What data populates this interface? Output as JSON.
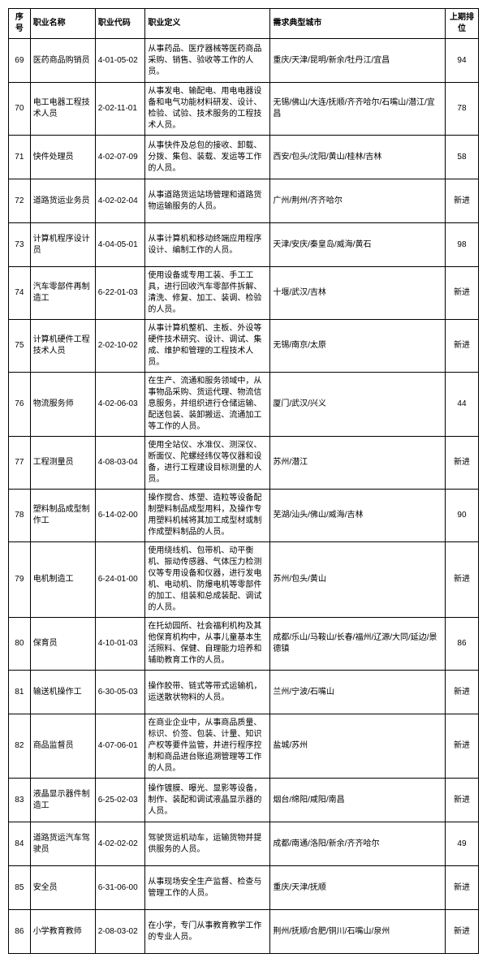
{
  "columns": [
    "序号",
    "职业名称",
    "职业代码",
    "职业定义",
    "需求典型城市",
    "上期排位"
  ],
  "rows": [
    {
      "idx": "69",
      "name": "医药商品购销员",
      "code": "4-01-05-02",
      "def": "从事药品、医疗器械等医药商品采购、销售、验收等工作的人员。",
      "city": "重庆/天津/昆明/新余/牡丹江/宜昌",
      "rank": "94"
    },
    {
      "idx": "70",
      "name": "电工电器工程技术人员",
      "code": "2-02-11-01",
      "def": "从事发电、输配电、用电电器设备和电气功能材料研发、设计、检验、试验、技术服务的工程技术人员。",
      "city": "无锡/佛山/大连/抚顺/齐齐哈尔/石嘴山/潜江/宜昌",
      "rank": "78"
    },
    {
      "idx": "71",
      "name": "快件处理员",
      "code": "4-02-07-09",
      "def": "从事快件及总包的接收、卸载、分拨、集包、装载、发运等工作的人员。",
      "city": "西安/包头/沈阳/黄山/桂林/吉林",
      "rank": "58"
    },
    {
      "idx": "72",
      "name": "道路货运业务员",
      "code": "4-02-02-04",
      "def": "从事道路货运站场管理和道路货物运输服务的人员。",
      "city": "广州/荆州/齐齐哈尔",
      "rank": "新进"
    },
    {
      "idx": "73",
      "name": "计算机程序设计员",
      "code": "4-04-05-01",
      "def": "从事计算机和移动终端应用程序设计、编制工作的人员。",
      "city": "天津/安庆/秦皇岛/威海/黄石",
      "rank": "98"
    },
    {
      "idx": "74",
      "name": "汽车零部件再制造工",
      "code": "6-22-01-03",
      "def": "使用设备或专用工装、手工工具，进行回收汽车零部件拆解、清洗、修复、加工、装调、检验的人员。",
      "city": "十堰/武汉/吉林",
      "rank": "新进"
    },
    {
      "idx": "75",
      "name": "计算机硬件工程技术人员",
      "code": "2-02-10-02",
      "def": "从事计算机整机、主板、外设等硬件技术研究、设计、调试、集成、维护和管理的工程技术人员。",
      "city": "无锡/南京/太原",
      "rank": "新进"
    },
    {
      "idx": "76",
      "name": "物流服务师",
      "code": "4-02-06-03",
      "def": "在生产、流通和服务领域中，从事物品采购、货运代理、物流信息服务，并组织进行仓储运输、配送包装、装卸搬运、流通加工等工作的人员。",
      "city": "厦门/武汉/兴义",
      "rank": "44"
    },
    {
      "idx": "77",
      "name": "工程测量员",
      "code": "4-08-03-04",
      "def": "使用全站仪、水准仪、测深仪、断面仪、陀螺经纬仪等仪器和设备，进行工程建设目标测量的人员。",
      "city": "苏州/潜江",
      "rank": "新进"
    },
    {
      "idx": "78",
      "name": "塑料制品成型制作工",
      "code": "6-14-02-00",
      "def": "操作搅合、炼塑、造粒等设备配制塑料制品成型用料，及操作专用塑料机械将其加工成型材或制作成塑料制品的人员。",
      "city": "芜湖/汕头/佛山/威海/吉林",
      "rank": "90"
    },
    {
      "idx": "79",
      "name": "电机制造工",
      "code": "6-24-01-00",
      "def": "使用绕线机、包带机、动平衡机、振动传感器、气体压力检测仪等专用设备和仪器，进行发电机、电动机、防爆电机等零部件的加工、组装和总成装配、调试的人员。",
      "city": "苏州/包头/黄山",
      "rank": "新进"
    },
    {
      "idx": "80",
      "name": "保育员",
      "code": "4-10-01-03",
      "def": "在托幼园所、社会福利机构及其他保育机构中，从事儿童基本生活照料、保健、自理能力培养和辅助教育工作的人员。",
      "city": "成都/乐山/马鞍山/长春/福州/辽源/大同/延边/景德镇",
      "rank": "86"
    },
    {
      "idx": "81",
      "name": "输送机操作工",
      "code": "6-30-05-03",
      "def": "操作胶带、链式等带式运输机，运送散状物料的人员。",
      "city": "兰州/宁波/石嘴山",
      "rank": "新进"
    },
    {
      "idx": "82",
      "name": "商品监督员",
      "code": "4-07-06-01",
      "def": "在商业企业中，从事商品质量、标识、价签、包装、计量、知识产权等要件监管，并进行程序控制和商品进台账追溯管理等工作的人员。",
      "city": "盐城/苏州",
      "rank": "新进"
    },
    {
      "idx": "83",
      "name": "液晶显示器件制造工",
      "code": "6-25-02-03",
      "def": "操作镀膜、曝光、显影等设备，制作、装配和调试液晶显示器的人员。",
      "city": "烟台/绵阳/咸阳/南昌",
      "rank": "新进"
    },
    {
      "idx": "84",
      "name": "道路货运汽车驾驶员",
      "code": "4-02-02-02",
      "def": "驾驶货运机动车，运输货物并提供服务的人员。",
      "city": "成都/南通/洛阳/新余/齐齐哈尔",
      "rank": "49"
    },
    {
      "idx": "85",
      "name": "安全员",
      "code": "6-31-06-00",
      "def": "从事现场安全生产监督、检查与管理工作的人员。",
      "city": "重庆/天津/抚顺",
      "rank": "新进"
    },
    {
      "idx": "86",
      "name": "小学教育教师",
      "code": "2-08-03-02",
      "def": "在小学，专门从事教育教学工作的专业人员。",
      "city": "荆州/抚顺/合肥/铜川/石嘴山/泉州",
      "rank": "新进"
    }
  ]
}
